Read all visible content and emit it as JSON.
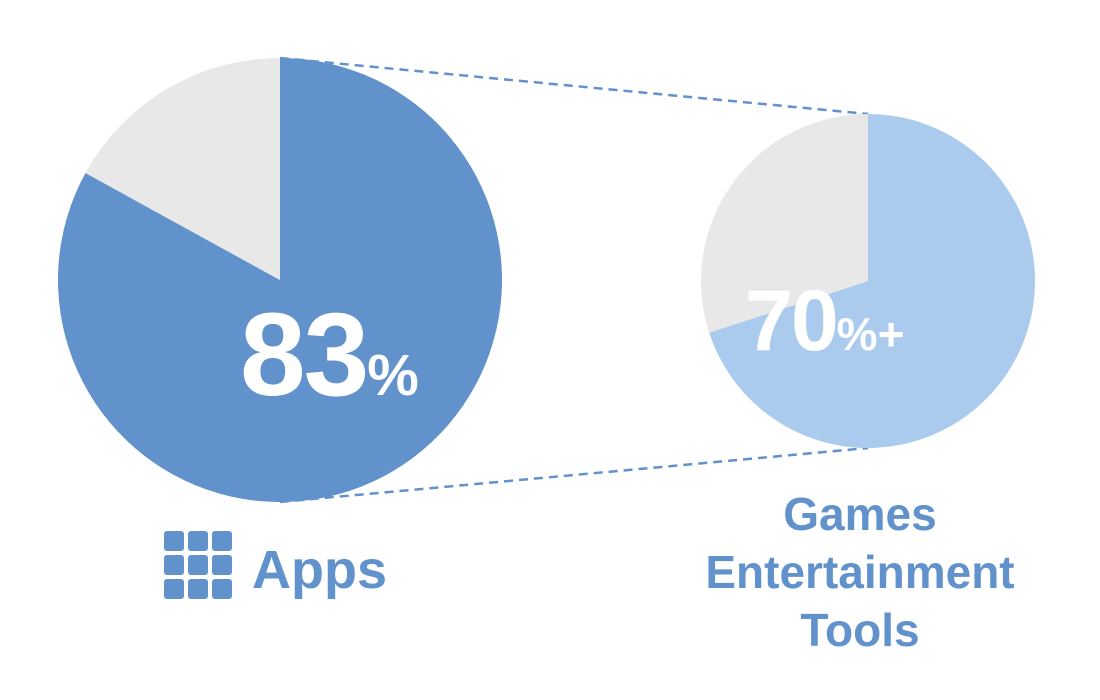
{
  "colors": {
    "primary_blue": "#6192cc",
    "light_blue": "#abcbee",
    "grey": "#e8e8e8",
    "text_blue": "#6192cc",
    "white": "#ffffff"
  },
  "chart_data": [
    {
      "type": "pie",
      "slices": [
        {
          "label": "Apps",
          "value": 83,
          "color": "#6192cc"
        },
        {
          "label": "",
          "value": 17,
          "color": "#e8e8e8"
        }
      ],
      "value_text": "83",
      "suffix_text": "%",
      "category_label": "Apps",
      "icon": "grid-icon"
    },
    {
      "type": "pie",
      "slices": [
        {
          "label": "Games Entertainment Tools",
          "value": 70,
          "color": "#abcbee"
        },
        {
          "label": "",
          "value": 30,
          "color": "#e8e8e8"
        }
      ],
      "value_text": "70",
      "suffix_text": "%+",
      "category_label_lines": [
        "Games",
        "Entertainment",
        "Tools"
      ]
    }
  ]
}
